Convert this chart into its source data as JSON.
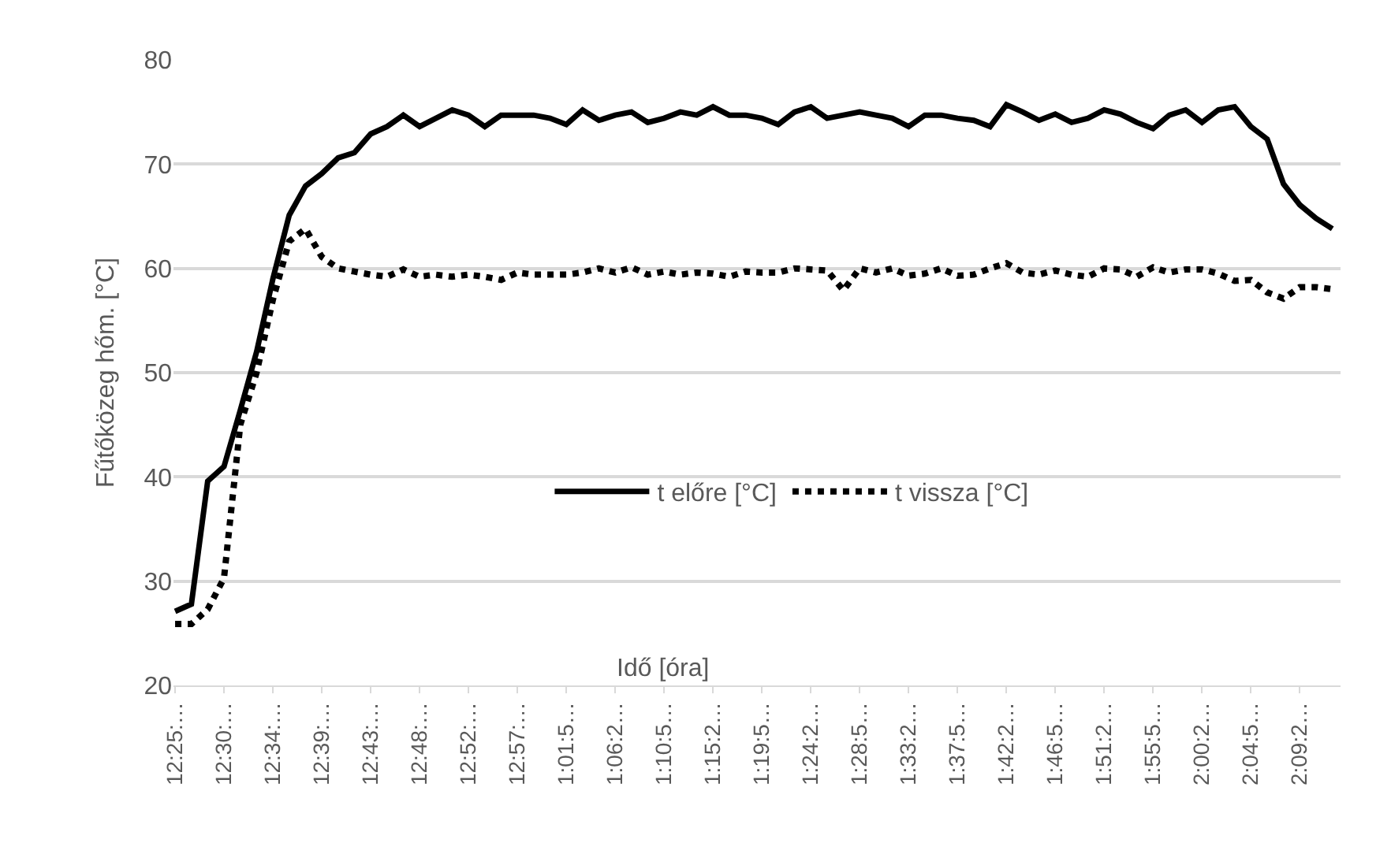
{
  "chart_data": {
    "type": "line",
    "xlabel": "Idő [óra]",
    "ylabel": "Fűtőközeg hőm. [°C]",
    "categories": [
      "12:25:…",
      null,
      null,
      "12:30:…",
      null,
      null,
      "12:34:…",
      null,
      null,
      "12:39:…",
      null,
      null,
      "12:43:…",
      null,
      null,
      "12:48:…",
      null,
      null,
      "12:52:…",
      null,
      null,
      "12:57:…",
      null,
      null,
      "1:01:5…",
      null,
      null,
      "1:06:2…",
      null,
      null,
      "1:10:5…",
      null,
      null,
      "1:15:2…",
      null,
      null,
      "1:19:5…",
      null,
      null,
      "1:24:2…",
      null,
      null,
      "1:28:5…",
      null,
      null,
      "1:33:2…",
      null,
      null,
      "1:37:5…",
      null,
      null,
      "1:42:2…",
      null,
      null,
      "1:46:5…",
      null,
      null,
      "1:51:2…",
      null,
      null,
      "1:55:5…",
      null,
      null,
      "2:00:2…",
      null,
      null,
      "2:04:5…",
      null,
      null,
      "2:09:2…",
      null,
      null
    ],
    "series": [
      {
        "name": "t előre [°C]",
        "color": "#000000",
        "line_style": "solid",
        "values": [
          27.1,
          27.8,
          39.6,
          41,
          46.4,
          52,
          59,
          65.1,
          67.9,
          69.1,
          70.6,
          71.1,
          72.9,
          73.6,
          74.7,
          73.6,
          74.4,
          75.2,
          74.7,
          73.6,
          74.7,
          74.7,
          74.7,
          74.4,
          73.8,
          75.2,
          74.2,
          74.7,
          75,
          74,
          74.4,
          75,
          74.7,
          75.5,
          74.7,
          74.7,
          74.4,
          73.8,
          75,
          75.5,
          74.4,
          74.7,
          75,
          74.7,
          74.4,
          73.6,
          74.7,
          74.7,
          74.4,
          74.2,
          73.6,
          75.7,
          75,
          74.2,
          74.8,
          74,
          74.4,
          75.2,
          74.8,
          74,
          73.4,
          74.7,
          75.2,
          74,
          75.2,
          75.5,
          73.6,
          72.4,
          68.1,
          66.1,
          64.8,
          63.8
        ]
      },
      {
        "name": "t vissza [°C]",
        "color": "#000000",
        "line_style": "dotted",
        "values": [
          25.9,
          25.9,
          27.3,
          30.3,
          45,
          50,
          57,
          62.6,
          63.8,
          61.1,
          60,
          59.7,
          59.4,
          59.2,
          59.9,
          59.2,
          59.4,
          59.2,
          59.4,
          59.2,
          58.9,
          59.6,
          59.4,
          59.4,
          59.4,
          59.6,
          60,
          59.6,
          60.1,
          59.4,
          59.7,
          59.4,
          59.6,
          59.5,
          59.2,
          59.7,
          59.6,
          59.6,
          60,
          59.9,
          59.8,
          57.9,
          60,
          59.6,
          60,
          59.3,
          59.5,
          60,
          59.3,
          59.4,
          60,
          60.5,
          59.6,
          59.4,
          59.8,
          59.4,
          59.2,
          60,
          59.9,
          59.2,
          60.1,
          59.6,
          59.9,
          59.9,
          59.5,
          58.8,
          58.9,
          57.7,
          57.1,
          58.2,
          58.2,
          58
        ]
      }
    ],
    "ylim": [
      20,
      80
    ],
    "yticks": [
      20,
      30,
      40,
      50,
      60,
      70,
      80
    ],
    "grid": "y",
    "legend": "bottom",
    "marker": "none"
  }
}
